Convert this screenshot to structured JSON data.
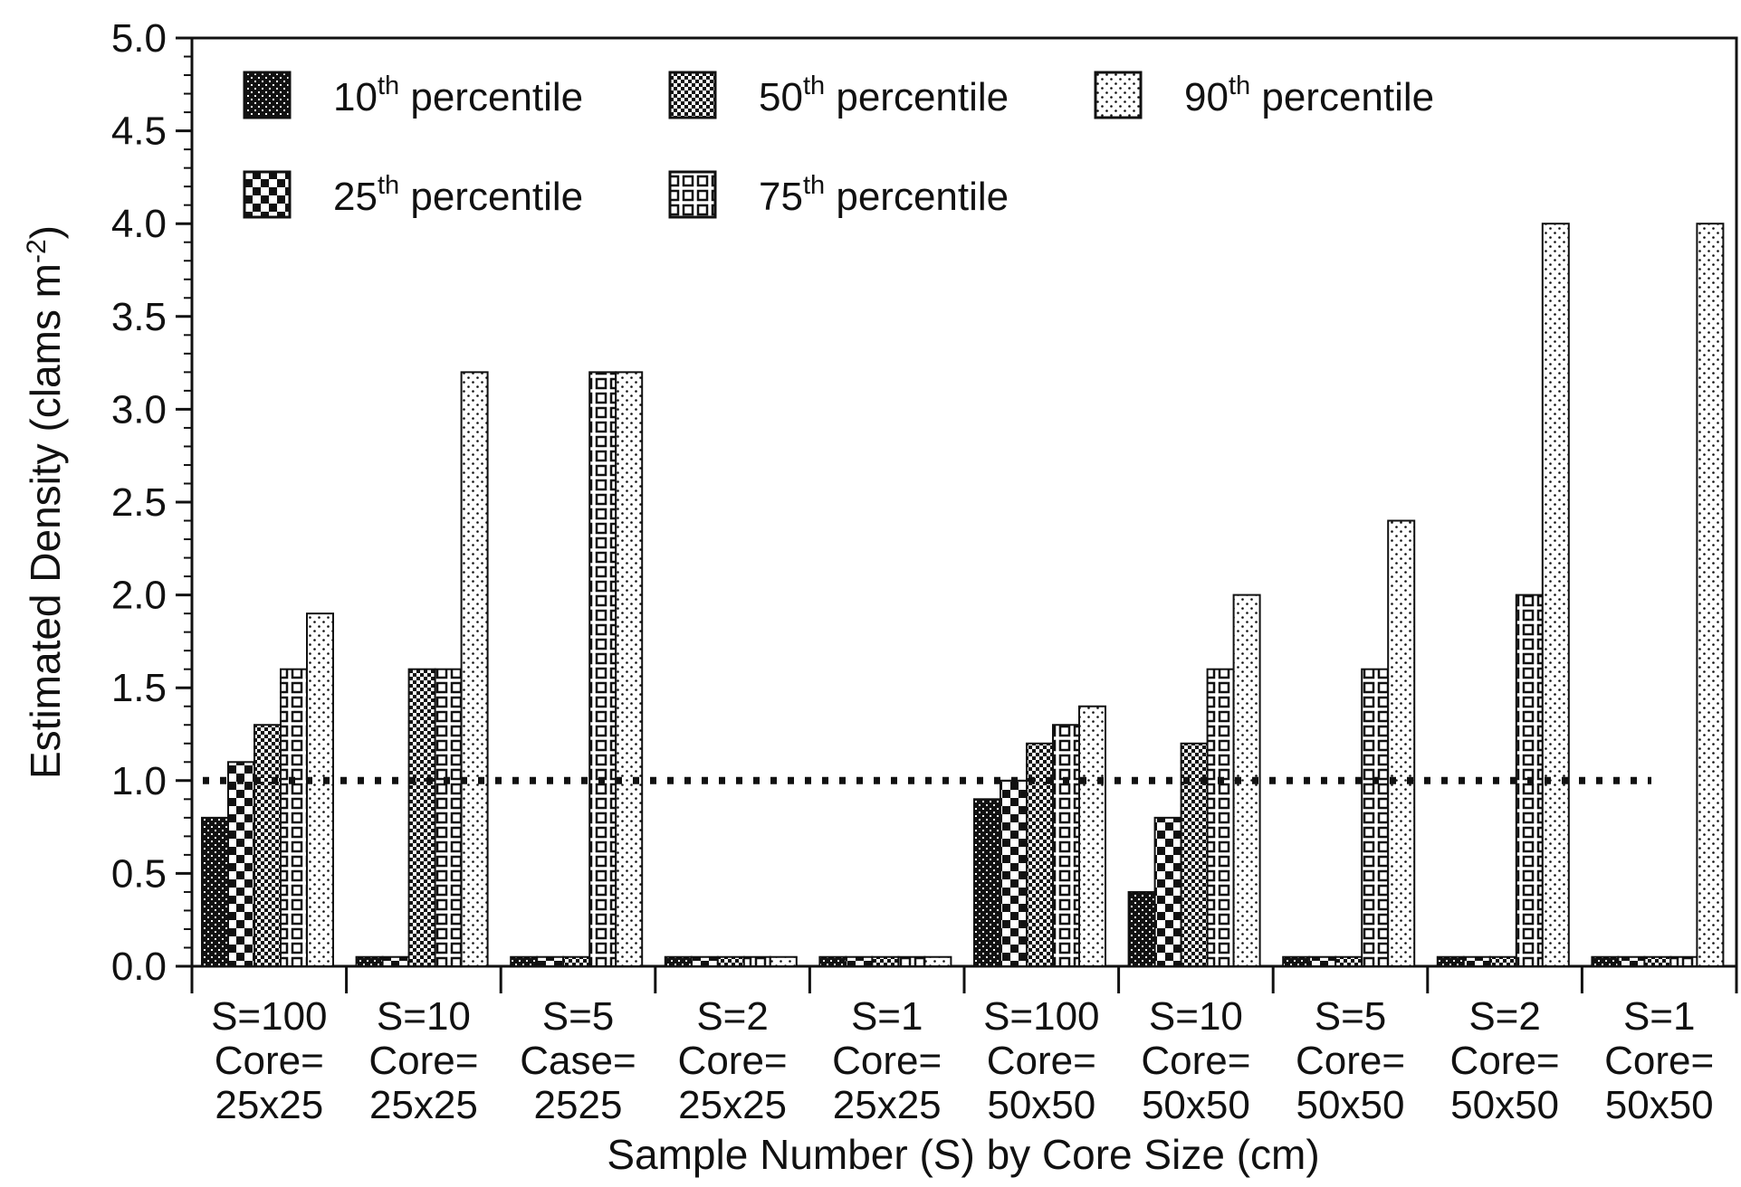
{
  "chart_data": {
    "type": "bar",
    "title": "",
    "xlabel": "Sample Number (S) by Core Size (cm)",
    "ylabel_main": "Estimated Density (clams m",
    "ylabel_sup": "-2",
    "ylabel_close": ")",
    "ylim": [
      0,
      5.0
    ],
    "yticks": [
      "0.0",
      "0.5",
      "1.0",
      "1.5",
      "2.0",
      "2.5",
      "3.0",
      "3.5",
      "4.0",
      "4.5",
      "5.0"
    ],
    "reference_line": 1.0,
    "grid": false,
    "legend_position": "top-left",
    "categories": [
      [
        "S=100",
        "Core=",
        "25x25"
      ],
      [
        "S=10",
        "Core=",
        "25x25"
      ],
      [
        "S=5",
        "Case=",
        "2525"
      ],
      [
        "S=2",
        "Core=",
        "25x25"
      ],
      [
        "S=1",
        "Core=",
        "25x25"
      ],
      [
        "S=100",
        "Core=",
        "50x50"
      ],
      [
        "S=10",
        "Core=",
        "50x50"
      ],
      [
        "S=5",
        "Core=",
        "50x50"
      ],
      [
        "S=2",
        "Core=",
        "50x50"
      ],
      [
        "S=1",
        "Core=",
        "50x50"
      ]
    ],
    "series": [
      {
        "num": "10",
        "sup": "th",
        "rest": " percentile",
        "pattern": "p10",
        "values": [
          0.8,
          0.05,
          0.05,
          0.05,
          0.05,
          0.9,
          0.4,
          0.05,
          0.05,
          0.05
        ]
      },
      {
        "num": "25",
        "sup": "th",
        "rest": " percentile",
        "pattern": "p25",
        "values": [
          1.1,
          0.05,
          0.05,
          0.05,
          0.05,
          1.0,
          0.8,
          0.05,
          0.05,
          0.05
        ]
      },
      {
        "num": "50",
        "sup": "th",
        "rest": " percentile",
        "pattern": "p50",
        "values": [
          1.3,
          1.6,
          0.05,
          0.05,
          0.05,
          1.2,
          1.2,
          0.05,
          0.05,
          0.05
        ]
      },
      {
        "num": "75",
        "sup": "th",
        "rest": " percentile",
        "pattern": "p75",
        "values": [
          1.6,
          1.6,
          3.2,
          0.05,
          0.05,
          1.3,
          1.6,
          1.6,
          2.0,
          0.05
        ]
      },
      {
        "num": "90",
        "sup": "th",
        "rest": " percentile",
        "pattern": "p90",
        "values": [
          1.9,
          3.2,
          3.2,
          0.05,
          0.05,
          1.4,
          2.0,
          2.4,
          4.0,
          4.0
        ]
      }
    ],
    "colors": {
      "ink": "#111111",
      "background": "#ffffff"
    }
  }
}
